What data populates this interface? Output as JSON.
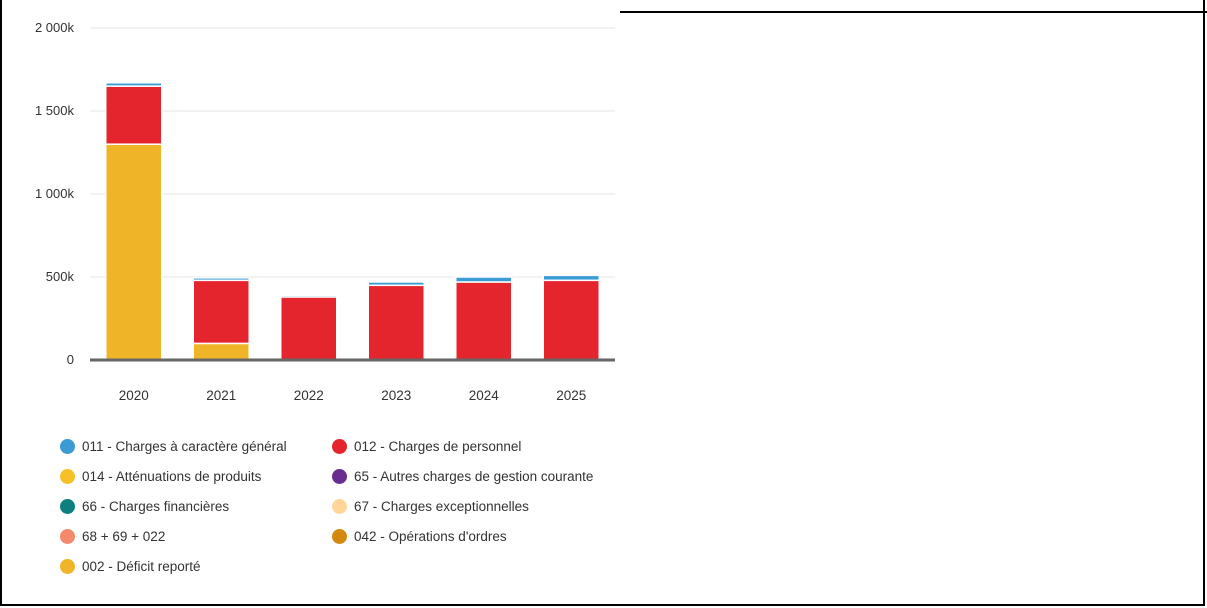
{
  "chart_data": {
    "type": "bar",
    "stacked": true,
    "categories": [
      "2020",
      "2021",
      "2022",
      "2023",
      "2024",
      "2025"
    ],
    "y_ticks": [
      {
        "value": 0,
        "label": "0"
      },
      {
        "value": 500,
        "label": "500k"
      },
      {
        "value": 1000,
        "label": "1 000k"
      },
      {
        "value": 1500,
        "label": "1 500k"
      },
      {
        "value": 2000,
        "label": "2 000k"
      }
    ],
    "ylim": [
      0,
      2000
    ],
    "grid": true,
    "legend_position": "bottom",
    "series": [
      {
        "name": "002 - Déficit reporté",
        "color": "#f0b429",
        "values": [
          1300,
          100,
          0,
          0,
          0,
          0
        ]
      },
      {
        "name": "012 - Charges de personnel",
        "color": "#e5252e",
        "values": [
          350,
          380,
          380,
          450,
          470,
          480
        ]
      },
      {
        "name": "011 - Charges à caractère général",
        "color": "#3a9bd5",
        "values": [
          20,
          15,
          10,
          20,
          30,
          30
        ]
      }
    ],
    "legend": [
      {
        "label": "011 - Charges à caractère général",
        "color": "#3a9bd5"
      },
      {
        "label": "012 - Charges de personnel",
        "color": "#e5252e"
      },
      {
        "label": "014 - Atténuations de produits",
        "color": "#f6c026"
      },
      {
        "label": "65 - Autres charges de gestion courante",
        "color": "#6a2c91"
      },
      {
        "label": "66 - Charges financières",
        "color": "#0e7f7f"
      },
      {
        "label": "67 - Charges exceptionnelles",
        "color": "#ffd59a"
      },
      {
        "label": "68 + 69 + 022",
        "color": "#f4896b"
      },
      {
        "label": "042 - Opérations d'ordres",
        "color": "#d4880f"
      },
      {
        "label": "002 - Déficit reporté",
        "color": "#f0b429"
      }
    ]
  }
}
